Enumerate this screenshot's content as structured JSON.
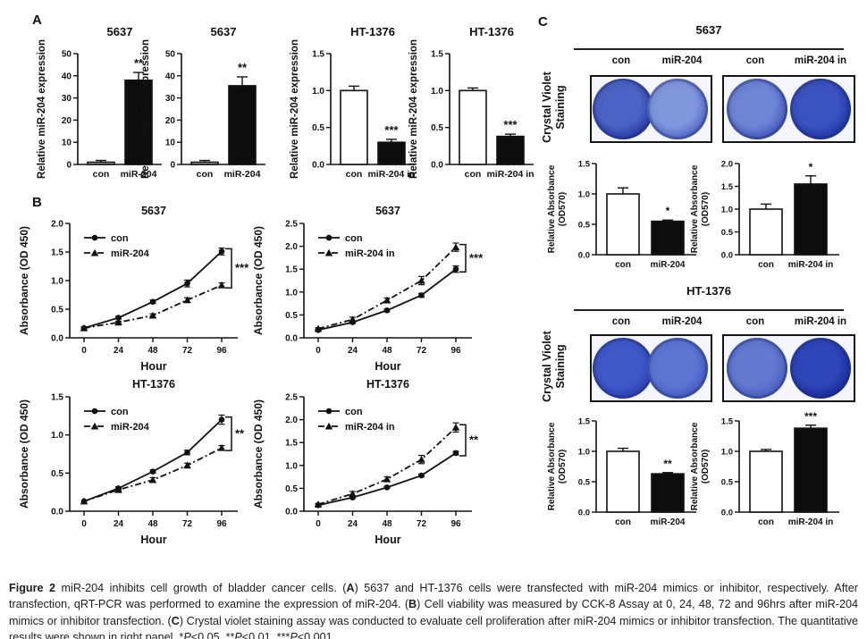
{
  "panels": {
    "a": "A",
    "b": "B",
    "c": "C"
  },
  "colors": {
    "bar_black": "#0d0d0d",
    "bar_white": "#ffffff",
    "bar_gray": "#c6c6c6",
    "axis": "#111111"
  },
  "chart_data": [
    {
      "type": "bar",
      "id": "a1",
      "title": "5637",
      "ylabel": [
        "Relative miR-204 expression"
      ],
      "categories": [
        "con",
        "miR-204"
      ],
      "values": [
        1,
        38
      ],
      "errors": [
        0.8,
        3.5
      ],
      "fills": [
        "gray",
        "black"
      ],
      "ylim": [
        0,
        50
      ],
      "yticks": [
        "0",
        "10",
        "20",
        "30",
        "40",
        "50"
      ],
      "sig": "**",
      "sig_index": 1
    },
    {
      "type": "bar",
      "id": "a2",
      "title": "5637",
      "ylabel": [
        "Relative miR-204 expression"
      ],
      "categories": [
        "con",
        "miR-204"
      ],
      "values": [
        1,
        35.5
      ],
      "errors": [
        0.8,
        4
      ],
      "fills": [
        "gray",
        "black"
      ],
      "ylim": [
        0,
        50
      ],
      "yticks": [
        "0",
        "10",
        "20",
        "30",
        "40",
        "50"
      ],
      "sig": "**",
      "sig_index": 1
    },
    {
      "type": "bar",
      "id": "a3",
      "title": "HT-1376",
      "ylabel": [
        "Relative miR-204 expression"
      ],
      "categories": [
        "con",
        "miR-204 in"
      ],
      "values": [
        1.0,
        0.3
      ],
      "errors": [
        0.06,
        0.04
      ],
      "fills": [
        "white",
        "black"
      ],
      "ylim": [
        0,
        1.5
      ],
      "yticks": [
        "0.0",
        "0.5",
        "1.0",
        "1.5"
      ],
      "sig": "***",
      "sig_index": 1
    },
    {
      "type": "bar",
      "id": "a4",
      "title": "HT-1376",
      "ylabel": [
        "Relative miR-204 expression"
      ],
      "categories": [
        "con",
        "miR-204 in"
      ],
      "values": [
        1.0,
        0.38
      ],
      "errors": [
        0.035,
        0.03
      ],
      "fills": [
        "white",
        "black"
      ],
      "ylim": [
        0,
        1.5
      ],
      "yticks": [
        "0.0",
        "0.5",
        "1.0",
        "1.5"
      ],
      "sig": "***",
      "sig_index": 1
    },
    {
      "type": "line",
      "id": "b1",
      "title": "5637",
      "ylabel": "Absorbance (OD 450)",
      "xlabel": "Hour",
      "x": [
        0,
        24,
        48,
        72,
        96
      ],
      "ylim": [
        0,
        2.0
      ],
      "yticks": [
        "0.0",
        "0.5",
        "1.0",
        "1.5",
        "2.0"
      ],
      "series": [
        {
          "name": "con",
          "marker": "circle",
          "line": "solid",
          "values": [
            0.17,
            0.35,
            0.63,
            0.95,
            1.51
          ],
          "errors": [
            0.02,
            0.02,
            0.03,
            0.06,
            0.06
          ]
        },
        {
          "name": "miR-204",
          "marker": "triangle",
          "line": "dashdot",
          "values": [
            0.17,
            0.27,
            0.39,
            0.66,
            0.92
          ],
          "errors": [
            0.02,
            0.02,
            0.03,
            0.04,
            0.04
          ]
        }
      ],
      "sig": "***"
    },
    {
      "type": "line",
      "id": "b2",
      "title": "5637",
      "ylabel": "Absorbance (OD 450)",
      "xlabel": "Hour",
      "x": [
        0,
        24,
        48,
        72,
        96
      ],
      "ylim": [
        0,
        2.5
      ],
      "yticks": [
        "0.0",
        "0.5",
        "1.0",
        "1.5",
        "2.0",
        "2.5"
      ],
      "series": [
        {
          "name": "con",
          "marker": "circle",
          "line": "solid",
          "values": [
            0.17,
            0.34,
            0.6,
            0.93,
            1.5
          ],
          "errors": [
            0.02,
            0.03,
            0.03,
            0.04,
            0.07
          ]
        },
        {
          "name": "miR-204 in",
          "marker": "triangle",
          "line": "dashdot",
          "values": [
            0.2,
            0.4,
            0.82,
            1.25,
            1.98
          ],
          "errors": [
            0.02,
            0.05,
            0.05,
            0.09,
            0.09
          ]
        }
      ],
      "sig": "***"
    },
    {
      "type": "line",
      "id": "b3",
      "title": "HT-1376",
      "ylabel": "Absorbance (OD 450)",
      "xlabel": "Hour",
      "x": [
        0,
        24,
        48,
        72,
        96
      ],
      "ylim": [
        0,
        1.5
      ],
      "yticks": [
        "0.0",
        "0.5",
        "1.0",
        "1.5"
      ],
      "series": [
        {
          "name": "con",
          "marker": "circle",
          "line": "solid",
          "values": [
            0.13,
            0.3,
            0.52,
            0.77,
            1.2
          ],
          "errors": [
            0.015,
            0.02,
            0.02,
            0.03,
            0.06
          ]
        },
        {
          "name": "miR-204",
          "marker": "triangle",
          "line": "dashdot",
          "values": [
            0.13,
            0.28,
            0.41,
            0.6,
            0.83
          ],
          "errors": [
            0.015,
            0.02,
            0.03,
            0.03,
            0.03
          ]
        }
      ],
      "sig": "**"
    },
    {
      "type": "line",
      "id": "b4",
      "title": "HT-1376",
      "ylabel": "Absorbance (OD 450)",
      "xlabel": "Hour",
      "x": [
        0,
        24,
        48,
        72,
        96
      ],
      "ylim": [
        0,
        2.5
      ],
      "yticks": [
        "0.0",
        "0.5",
        "1.0",
        "1.5",
        "2.0",
        "2.5"
      ],
      "series": [
        {
          "name": "con",
          "marker": "circle",
          "line": "solid",
          "values": [
            0.13,
            0.3,
            0.52,
            0.78,
            1.27
          ],
          "errors": [
            0.015,
            0.02,
            0.02,
            0.03,
            0.04
          ]
        },
        {
          "name": "miR-204 in",
          "marker": "triangle",
          "line": "dashdot",
          "values": [
            0.15,
            0.38,
            0.7,
            1.13,
            1.83
          ],
          "errors": [
            0.02,
            0.05,
            0.05,
            0.09,
            0.1
          ]
        }
      ],
      "sig": "**"
    },
    {
      "type": "bar",
      "id": "c1",
      "title": "",
      "ylabel": [
        "Relative Absorbance",
        "(OD570)"
      ],
      "categories": [
        "con",
        "miR-204"
      ],
      "values": [
        1.0,
        0.55
      ],
      "errors": [
        0.1,
        0.02
      ],
      "fills": [
        "white",
        "black"
      ],
      "ylim": [
        0,
        1.5
      ],
      "yticks": [
        "0.0",
        "0.5",
        "1.0",
        "1.5"
      ],
      "sig": "*",
      "sig_index": 1
    },
    {
      "type": "bar",
      "id": "c2",
      "title": "",
      "ylabel": [
        "Relative Absorbance",
        "(OD570)"
      ],
      "categories": [
        "con",
        "miR-204 in"
      ],
      "values": [
        1.0,
        1.55
      ],
      "errors": [
        0.11,
        0.18
      ],
      "fills": [
        "white",
        "black"
      ],
      "ylim": [
        0,
        2.0
      ],
      "yticks": [
        "0.0",
        "0.5",
        "1.0",
        "1.5",
        "2.0"
      ],
      "sig": "*",
      "sig_index": 1
    },
    {
      "type": "bar",
      "id": "c3",
      "title": "",
      "ylabel": [
        "Relative Absorbance",
        "(OD570)"
      ],
      "categories": [
        "con",
        "miR-204"
      ],
      "values": [
        1.0,
        0.63
      ],
      "errors": [
        0.05,
        0.02
      ],
      "fills": [
        "white",
        "black"
      ],
      "ylim": [
        0,
        1.5
      ],
      "yticks": [
        "0.0",
        "0.5",
        "1.0",
        "1.5"
      ],
      "sig": "**",
      "sig_index": 1
    },
    {
      "type": "bar",
      "id": "c4",
      "title": "",
      "ylabel": [
        "Relative Absorbance",
        "(OD570)"
      ],
      "categories": [
        "con",
        "miR-204 in"
      ],
      "values": [
        1.0,
        1.38
      ],
      "errors": [
        0.03,
        0.05
      ],
      "fills": [
        "white",
        "black"
      ],
      "ylim": [
        0,
        1.5
      ],
      "yticks": [
        "0.0",
        "0.5",
        "1.0",
        "1.5"
      ],
      "sig": "***",
      "sig_index": 1
    }
  ],
  "staining": {
    "row_label": [
      "Crystal Violet",
      "Staining"
    ],
    "sections": [
      {
        "title": "5637",
        "groups": [
          {
            "labels": [
              "con",
              "miR-204"
            ],
            "wells": [
              {
                "inner": "#4a63c4",
                "edge": "#2438a8"
              },
              {
                "inner": "#8197dc",
                "edge": "#5068c8"
              }
            ]
          },
          {
            "labels": [
              "con",
              "miR-204 in"
            ],
            "wells": [
              {
                "inner": "#6d85d4",
                "edge": "#4257bf"
              },
              {
                "inner": "#3a53bf",
                "edge": "#1f36a6"
              }
            ]
          }
        ]
      },
      {
        "title": "HT-1376",
        "groups": [
          {
            "labels": [
              "con",
              "miR-204"
            ],
            "wells": [
              {
                "inner": "#4059c8",
                "edge": "#2c44b4"
              },
              {
                "inner": "#5d76d2",
                "edge": "#4560c8"
              }
            ]
          },
          {
            "labels": [
              "con",
              "miR-204 in"
            ],
            "wells": [
              {
                "inner": "#6379cf",
                "edge": "#4a63c4"
              },
              {
                "inner": "#2e46b8",
                "edge": "#182c9e"
              }
            ]
          }
        ]
      }
    ]
  },
  "caption": {
    "segments": [
      {
        "text": "Figure 2 ",
        "bold": true
      },
      {
        "text": "miR-204 inhibits cell growth of bladder cancer cells. ("
      },
      {
        "text": "A",
        "bold": true
      },
      {
        "text": ") 5637 and HT-1376 cells were transfected with miR-204 mimics or inhibitor, respectively. After transfection, qRT-PCR was performed to examine the expression of miR-204. ("
      },
      {
        "text": "B",
        "bold": true
      },
      {
        "text": ") Cell viability was measured by CCK-8 Assay at 0, 24, 48, 72 and 96hrs after miR-204 mimics or inhibitor transfection. ("
      },
      {
        "text": "C",
        "bold": true
      },
      {
        "text": ") Crystal violet staining assay was conducted to evaluate cell proliferation after miR-204 mimics or inhibitor transfection. The quantitative results were shown in right panel. *"
      },
      {
        "text": "P",
        "italic": true
      },
      {
        "text": "<0.05, **"
      },
      {
        "text": "P",
        "italic": true
      },
      {
        "text": "<0.01, ***"
      },
      {
        "text": "P",
        "italic": true
      },
      {
        "text": "<0.001."
      }
    ]
  }
}
